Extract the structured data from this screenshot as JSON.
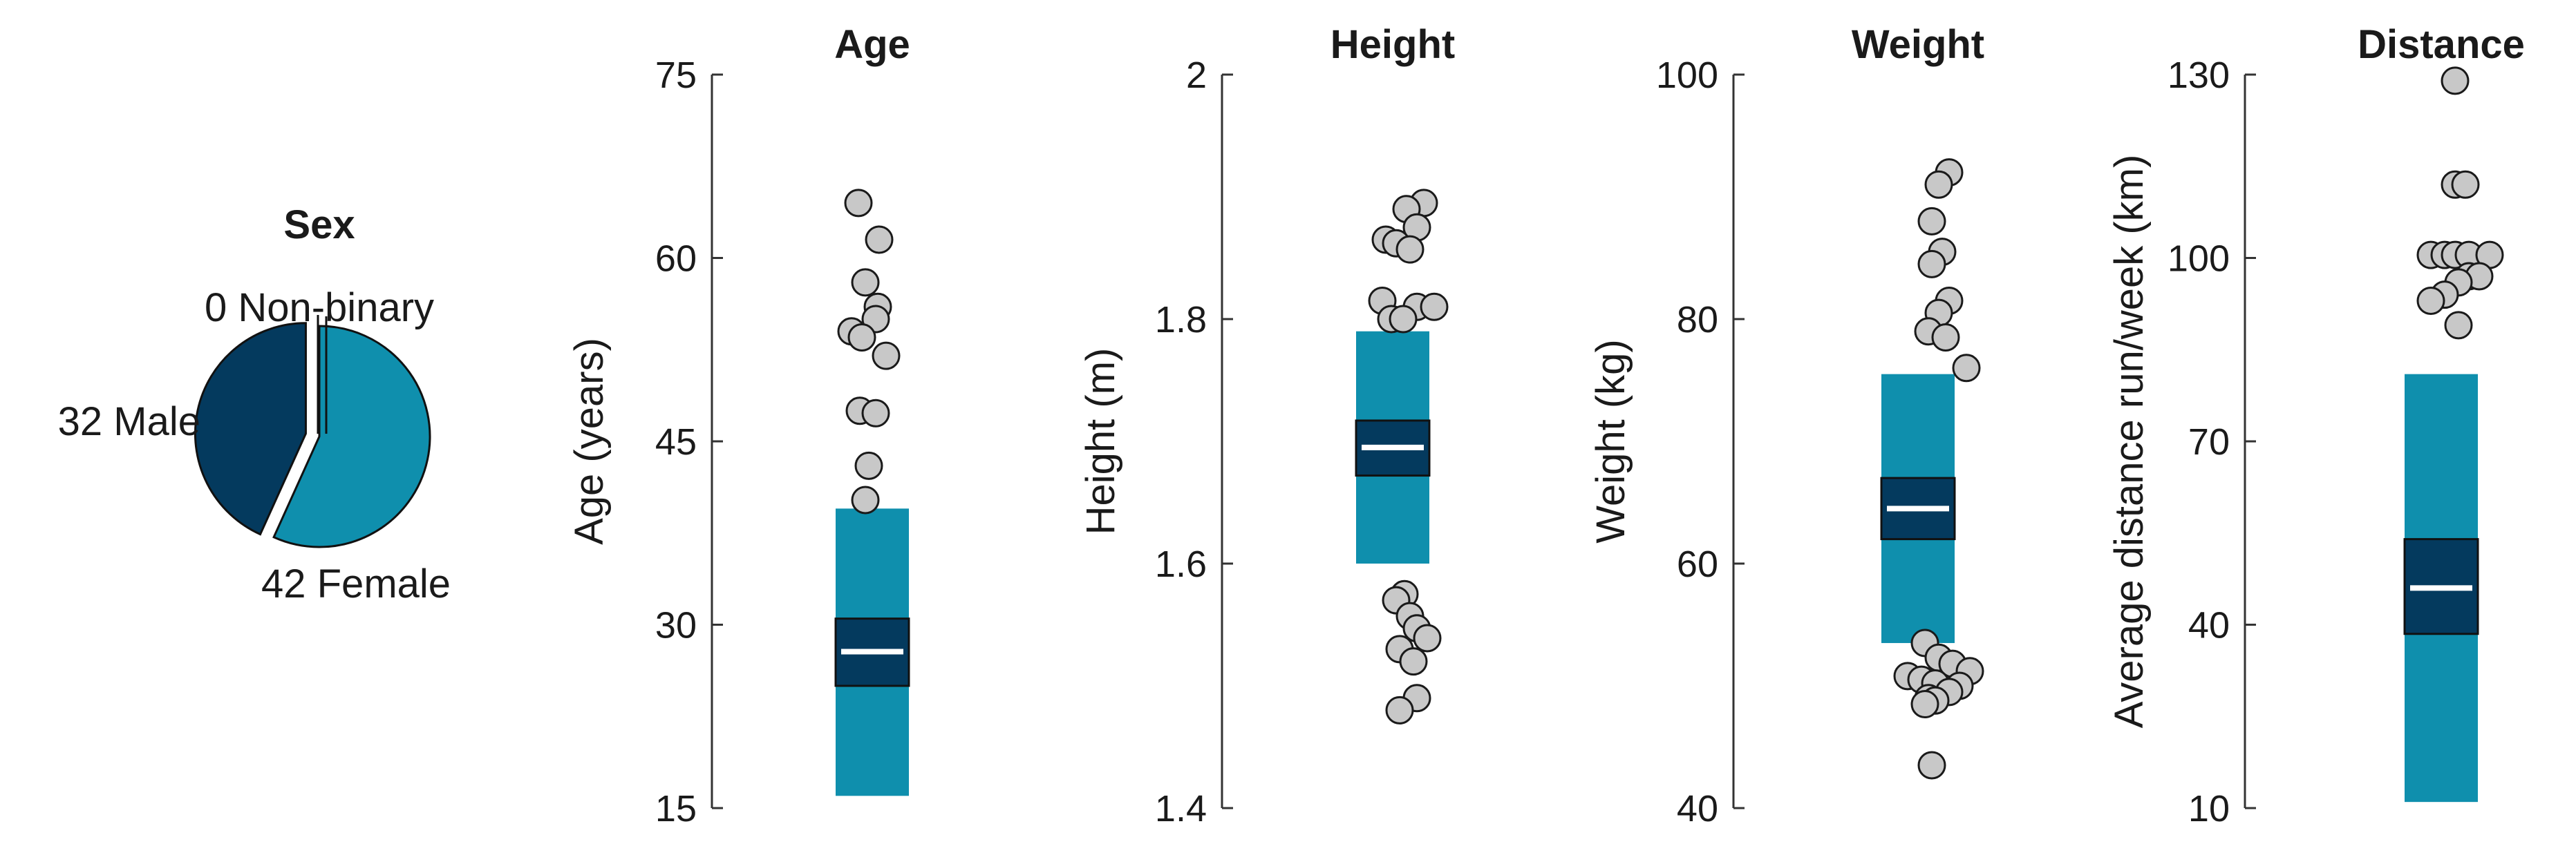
{
  "colors": {
    "teal": "#0F8FAD",
    "navy": "#043A5E",
    "white": "#FFFFFF",
    "dot_fill": "#C8C8C8",
    "dot_stroke": "#1A1A1A",
    "axis": "#333333",
    "text": "#1A1A1A"
  },
  "pie": {
    "title": "Sex",
    "slices": [
      {
        "label": "32 Male",
        "count": 32,
        "color": "#043A5E",
        "exploded": true
      },
      {
        "label": "42 Female",
        "count": 42,
        "color": "#0F8FAD",
        "exploded": false
      },
      {
        "label": "0 Non-binary",
        "count": 0,
        "color": "#FFFFFF",
        "exploded": true
      }
    ]
  },
  "chart_data": [
    {
      "type": "pie",
      "title": "Sex",
      "categories": [
        "Male",
        "Female",
        "Non-binary"
      ],
      "values": [
        32,
        42,
        0
      ],
      "labels": [
        "32 Male",
        "42 Female",
        "0 Non-binary"
      ]
    },
    {
      "type": "scatter",
      "title": "Age",
      "ylabel": "Age (years)",
      "ylim": [
        15,
        75
      ],
      "yticks": [
        15,
        30,
        45,
        60,
        75
      ],
      "range": [
        16,
        39.5
      ],
      "ci": [
        25,
        30.5
      ],
      "mean": 27.8,
      "outliers": [
        {
          "x": -0.2,
          "y": 64.5
        },
        {
          "x": 0.1,
          "y": 61.5
        },
        {
          "x": -0.1,
          "y": 58
        },
        {
          "x": 0.08,
          "y": 56
        },
        {
          "x": -0.3,
          "y": 54
        },
        {
          "x": 0.05,
          "y": 55
        },
        {
          "x": -0.15,
          "y": 53.5
        },
        {
          "x": 0.2,
          "y": 52
        },
        {
          "x": -0.18,
          "y": 47.5
        },
        {
          "x": 0.05,
          "y": 47.3
        },
        {
          "x": -0.05,
          "y": 43
        },
        {
          "x": -0.1,
          "y": 40.2
        }
      ]
    },
    {
      "type": "scatter",
      "title": "Height",
      "ylabel": "Height (m)",
      "ylim": [
        1.4,
        2
      ],
      "yticks": [
        1.4,
        1.6,
        1.8,
        2
      ],
      "range": [
        1.6,
        1.79
      ],
      "ci": [
        1.672,
        1.717
      ],
      "mean": 1.695,
      "outliers": [
        {
          "x": 0.45,
          "y": 1.895
        },
        {
          "x": 0.2,
          "y": 1.89
        },
        {
          "x": 0.35,
          "y": 1.875
        },
        {
          "x": -0.1,
          "y": 1.865
        },
        {
          "x": 0.05,
          "y": 1.862
        },
        {
          "x": 0.25,
          "y": 1.857
        },
        {
          "x": -0.15,
          "y": 1.815
        },
        {
          "x": 0.35,
          "y": 1.81
        },
        {
          "x": 0.6,
          "y": 1.81
        },
        {
          "x": -0.02,
          "y": 1.8
        },
        {
          "x": 0.15,
          "y": 1.8
        },
        {
          "x": 0.17,
          "y": 1.575
        },
        {
          "x": 0.05,
          "y": 1.57
        },
        {
          "x": 0.25,
          "y": 1.557
        },
        {
          "x": 0.35,
          "y": 1.547
        },
        {
          "x": 0.5,
          "y": 1.539
        },
        {
          "x": 0.1,
          "y": 1.53
        },
        {
          "x": 0.3,
          "y": 1.52
        },
        {
          "x": 0.35,
          "y": 1.49
        },
        {
          "x": 0.1,
          "y": 1.48
        }
      ]
    },
    {
      "type": "scatter",
      "title": "Weight",
      "ylabel": "Weight (kg)",
      "ylim": [
        40,
        100
      ],
      "yticks": [
        40,
        60,
        80,
        100
      ],
      "range": [
        53.5,
        75.5
      ],
      "ci": [
        62,
        67
      ],
      "mean": 64.5,
      "outliers": [
        {
          "x": 0.45,
          "y": 92
        },
        {
          "x": 0.3,
          "y": 91
        },
        {
          "x": 0.2,
          "y": 88
        },
        {
          "x": 0.35,
          "y": 85.5
        },
        {
          "x": 0.2,
          "y": 84.5
        },
        {
          "x": 0.45,
          "y": 81.5
        },
        {
          "x": 0.3,
          "y": 80.5
        },
        {
          "x": 0.15,
          "y": 79
        },
        {
          "x": 0.4,
          "y": 78.5
        },
        {
          "x": 0.7,
          "y": 76
        },
        {
          "x": 0.1,
          "y": 53.5
        },
        {
          "x": 0.3,
          "y": 52.3
        },
        {
          "x": 0.5,
          "y": 51.8
        },
        {
          "x": 0.75,
          "y": 51.2
        },
        {
          "x": -0.15,
          "y": 50.8
        },
        {
          "x": 0.05,
          "y": 50.5
        },
        {
          "x": 0.25,
          "y": 50.2
        },
        {
          "x": 0.6,
          "y": 50
        },
        {
          "x": 0.45,
          "y": 49.5
        },
        {
          "x": 0.15,
          "y": 49
        },
        {
          "x": 0.25,
          "y": 48.8
        },
        {
          "x": 0.1,
          "y": 48.5
        },
        {
          "x": 0.2,
          "y": 43.5
        }
      ]
    },
    {
      "type": "scatter",
      "title": "Distance",
      "ylabel": "Average distance run/week (km)",
      "ylim": [
        10,
        130
      ],
      "yticks": [
        10,
        40,
        70,
        100,
        130
      ],
      "range": [
        11,
        81
      ],
      "ci": [
        38.5,
        54
      ],
      "mean": 46,
      "outliers": [
        {
          "x": 0.2,
          "y": 129
        },
        {
          "x": 0.2,
          "y": 112
        },
        {
          "x": 0.35,
          "y": 112
        },
        {
          "x": -0.15,
          "y": 100.5
        },
        {
          "x": 0.05,
          "y": 100.5
        },
        {
          "x": 0.2,
          "y": 100.5
        },
        {
          "x": 0.4,
          "y": 100.5
        },
        {
          "x": 0.7,
          "y": 100.5
        },
        {
          "x": 0.4,
          "y": 97
        },
        {
          "x": 0.55,
          "y": 97
        },
        {
          "x": 0.25,
          "y": 96
        },
        {
          "x": 0.05,
          "y": 94
        },
        {
          "x": -0.15,
          "y": 93
        },
        {
          "x": 0.25,
          "y": 89
        }
      ]
    }
  ]
}
